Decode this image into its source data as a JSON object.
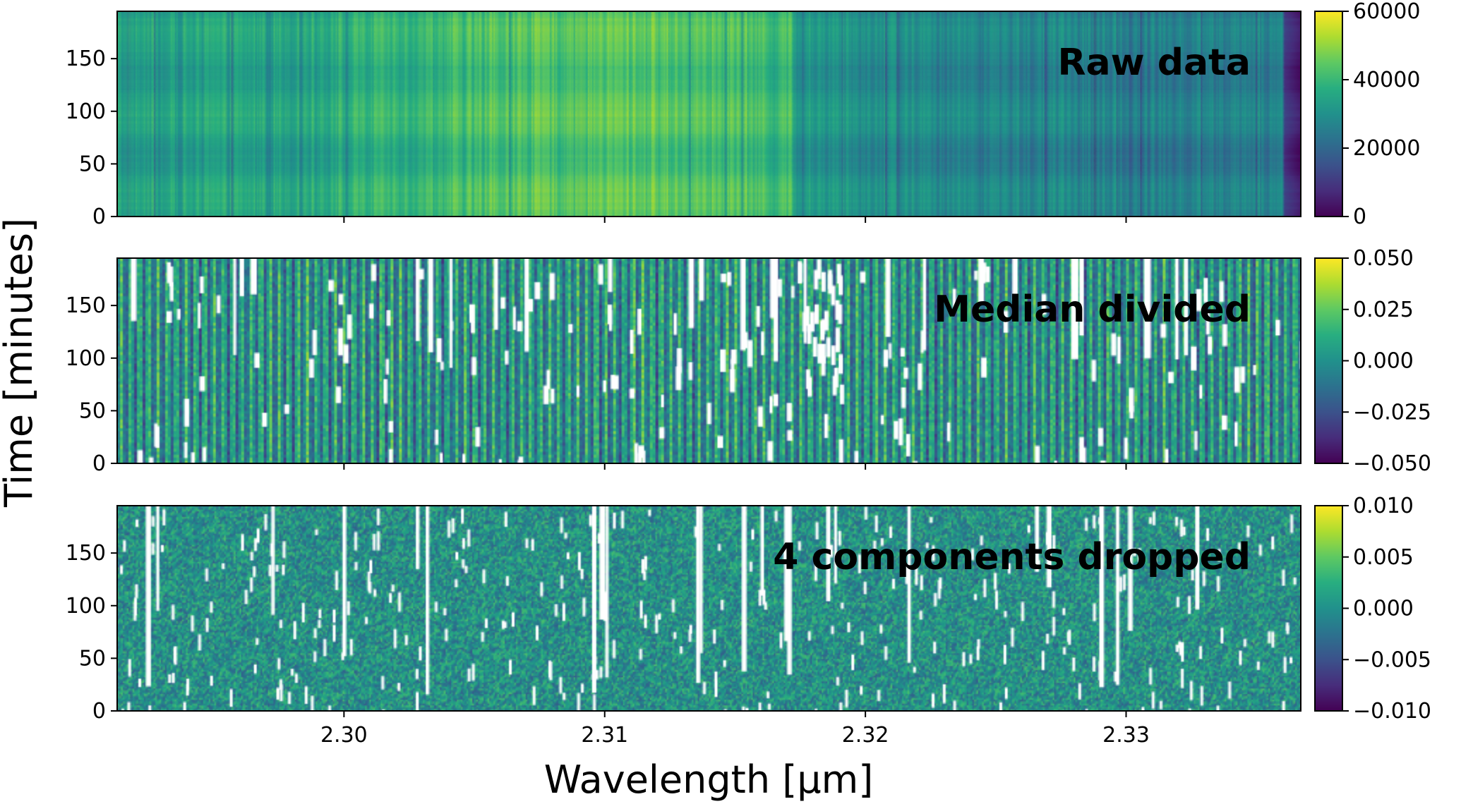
{
  "figure": {
    "xlabel": "Wavelength [μm]",
    "ylabel": "Time [minutes]"
  },
  "chart_data": [
    {
      "type": "heatmap",
      "label": "Raw data",
      "xlim": [
        2.2913,
        2.3367
      ],
      "ylim": [
        0,
        195
      ],
      "x_ticks": [
        "2.30",
        "2.31",
        "2.32",
        "2.33"
      ],
      "x_tick_values": [
        2.3,
        2.31,
        2.32,
        2.33
      ],
      "y_ticks": [
        "0",
        "50",
        "100",
        "150"
      ],
      "y_tick_values": [
        0,
        50,
        100,
        150
      ],
      "colormap": "viridis",
      "colorbar": {
        "range": [
          0,
          60000
        ],
        "ticks": [
          "0",
          "20000",
          "40000",
          "60000"
        ],
        "tick_values": [
          0,
          20000,
          40000,
          60000
        ]
      },
      "show_x_tick_labels": false
    },
    {
      "type": "heatmap",
      "label": "Median divided",
      "xlim": [
        2.2913,
        2.3367
      ],
      "ylim": [
        0,
        195
      ],
      "x_ticks": [
        "2.30",
        "2.31",
        "2.32",
        "2.33"
      ],
      "x_tick_values": [
        2.3,
        2.31,
        2.32,
        2.33
      ],
      "y_ticks": [
        "0",
        "50",
        "100",
        "150"
      ],
      "y_tick_values": [
        0,
        50,
        100,
        150
      ],
      "colormap": "viridis",
      "colorbar": {
        "range": [
          -0.05,
          0.05
        ],
        "ticks": [
          "−0.050",
          "−0.025",
          "0.000",
          "0.025",
          "0.050"
        ],
        "tick_values": [
          -0.05,
          -0.025,
          0,
          0.025,
          0.05
        ]
      },
      "show_x_tick_labels": false
    },
    {
      "type": "heatmap",
      "label": "4 components dropped",
      "xlim": [
        2.2913,
        2.3367
      ],
      "ylim": [
        0,
        195
      ],
      "x_ticks": [
        "2.30",
        "2.31",
        "2.32",
        "2.33"
      ],
      "x_tick_values": [
        2.3,
        2.31,
        2.32,
        2.33
      ],
      "y_ticks": [
        "0",
        "50",
        "100",
        "150"
      ],
      "y_tick_values": [
        0,
        50,
        100,
        150
      ],
      "colormap": "viridis",
      "colorbar": {
        "range": [
          -0.01,
          0.01
        ],
        "ticks": [
          "−0.010",
          "−0.005",
          "0.000",
          "0.005",
          "0.010"
        ],
        "tick_values": [
          -0.01,
          -0.005,
          0,
          0.005,
          0.01
        ]
      },
      "show_x_tick_labels": true
    }
  ]
}
